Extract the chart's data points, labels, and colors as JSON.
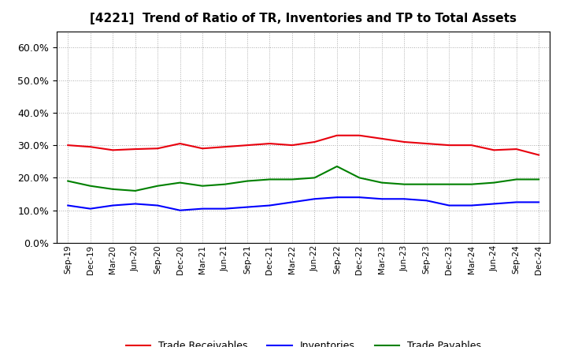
{
  "title": "[4221]  Trend of Ratio of TR, Inventories and TP to Total Assets",
  "x_labels": [
    "Sep-19",
    "Dec-19",
    "Mar-20",
    "Jun-20",
    "Sep-20",
    "Dec-20",
    "Mar-21",
    "Jun-21",
    "Sep-21",
    "Dec-21",
    "Mar-22",
    "Jun-22",
    "Sep-22",
    "Dec-22",
    "Mar-23",
    "Jun-23",
    "Sep-23",
    "Dec-23",
    "Mar-24",
    "Jun-24",
    "Sep-24",
    "Dec-24"
  ],
  "trade_receivables": [
    30.0,
    29.5,
    28.5,
    28.8,
    29.0,
    30.5,
    29.0,
    29.5,
    30.0,
    30.5,
    30.0,
    31.0,
    33.0,
    33.0,
    32.0,
    31.0,
    30.5,
    30.0,
    30.0,
    28.5,
    28.8,
    27.0
  ],
  "inventories": [
    11.5,
    10.5,
    11.5,
    12.0,
    11.5,
    10.0,
    10.5,
    10.5,
    11.0,
    11.5,
    12.5,
    13.5,
    14.0,
    14.0,
    13.5,
    13.5,
    13.0,
    11.5,
    11.5,
    12.0,
    12.5,
    12.5
  ],
  "trade_payables": [
    19.0,
    17.5,
    16.5,
    16.0,
    17.5,
    18.5,
    17.5,
    18.0,
    19.0,
    19.5,
    19.5,
    20.0,
    23.5,
    20.0,
    18.5,
    18.0,
    18.0,
    18.0,
    18.0,
    18.5,
    19.5,
    19.5
  ],
  "tr_color": "#e8000d",
  "inv_color": "#0000ff",
  "tp_color": "#008000",
  "ylim": [
    0,
    65
  ],
  "yticks": [
    0,
    10,
    20,
    30,
    40,
    50,
    60
  ],
  "background_color": "#ffffff",
  "grid_color": "#aaaaaa"
}
